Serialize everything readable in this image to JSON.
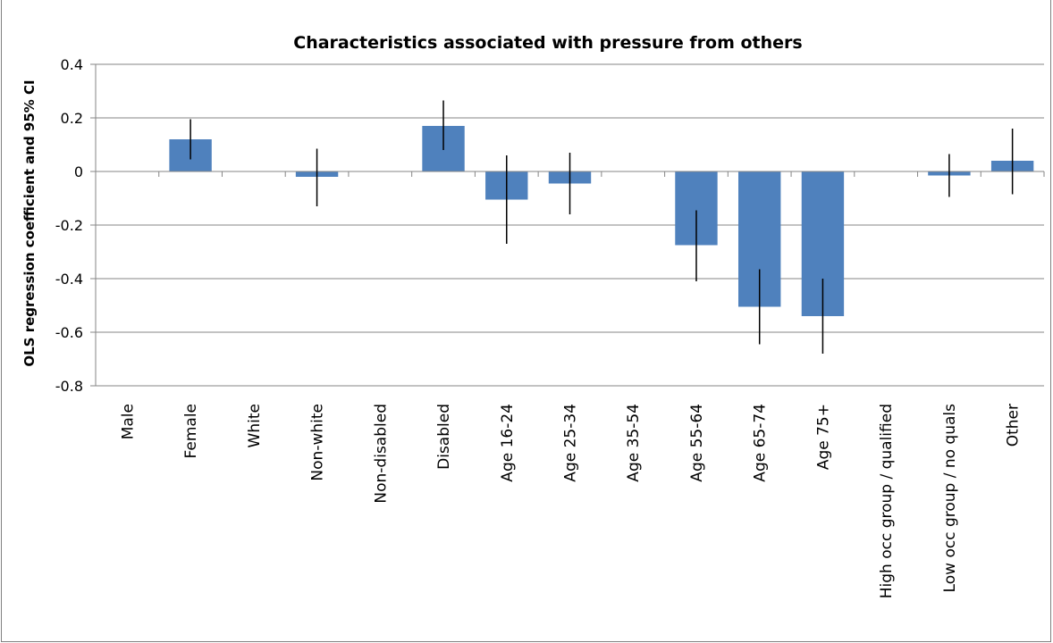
{
  "chart_data": {
    "type": "bar",
    "title": "Characteristics associated with pressure from others",
    "xlabel": "",
    "ylabel": "OLS regression coefficient and 95% CI",
    "ylim": [
      -0.8,
      0.4
    ],
    "yticks": [
      0.4,
      0.2,
      0,
      -0.2,
      -0.4,
      -0.6,
      -0.8
    ],
    "ytick_labels": [
      "0.4",
      "0.2",
      "0",
      "-0.2",
      "-0.4",
      "-0.6",
      "-0.8"
    ],
    "grid": true,
    "bar_color": "#4f81bd",
    "categories": [
      "Male",
      "Female",
      "White",
      "Non-white",
      "Non-disabled",
      "Disabled",
      "Age 16-24",
      "Age 25-34",
      "Age 35-54",
      "Age 55-64",
      "Age 65-74",
      "Age 75+",
      "High occ group / qualified",
      "Low occ group / no quals",
      "Other"
    ],
    "values": [
      0,
      0.12,
      0,
      -0.02,
      0,
      0.17,
      -0.105,
      -0.045,
      0,
      -0.275,
      -0.505,
      -0.54,
      0,
      -0.015,
      0.04
    ],
    "ci_low": [
      null,
      0.045,
      null,
      -0.13,
      null,
      0.08,
      -0.27,
      -0.16,
      null,
      -0.41,
      -0.645,
      -0.68,
      null,
      -0.095,
      -0.085
    ],
    "ci_high": [
      null,
      0.195,
      null,
      0.085,
      null,
      0.265,
      0.06,
      0.07,
      null,
      -0.145,
      -0.365,
      -0.4,
      null,
      0.065,
      0.16
    ]
  }
}
